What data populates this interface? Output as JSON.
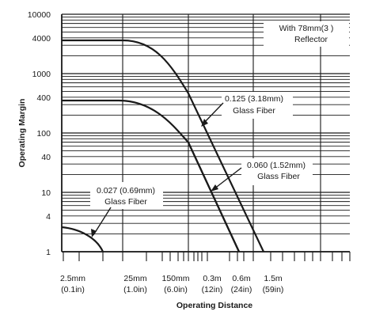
{
  "chart_data": {
    "type": "line",
    "xlabel": "Operating Distance",
    "ylabel": "Operating Margin",
    "y_scale": "log",
    "ylim": [
      1,
      10000
    ],
    "y_ticks": [
      "10000",
      "4000",
      "1000",
      "400",
      "100",
      "40",
      "10",
      "4",
      "1"
    ],
    "x_scale": "log",
    "x_ticks": [
      {
        "line1": "2.5mm",
        "line2": "(0.1in)"
      },
      {
        "line1": "25mm",
        "line2": "(1.0in)"
      },
      {
        "line1": "150mm",
        "line2": "(6.0in)"
      },
      {
        "line1": "0.3m",
        "line2": "(12in)"
      },
      {
        "line1": "0.6m",
        "line2": "(24in)"
      },
      {
        "line1": "1.5m",
        "line2": "(59in)"
      }
    ],
    "grid": true,
    "series": [
      {
        "name": "With 78mm (3 ) Reflector",
        "x_mm": [
          2.5,
          20,
          60,
          120,
          190,
          300,
          420,
          600,
          1050
        ],
        "y": [
          4000,
          4000,
          3800,
          2200,
          900,
          150,
          30,
          6,
          1
        ]
      },
      {
        "name": "0.125 (3.18mm) Glass Fiber",
        "x_mm": [
          2.5,
          20,
          60,
          100,
          150,
          230,
          330,
          480
        ],
        "y": [
          400,
          400,
          360,
          230,
          100,
          18,
          4,
          1
        ]
      },
      {
        "name": "0.060 (1.52mm) Glass Fiber",
        "x_mm": [
          2.5,
          20,
          60,
          100,
          150,
          230,
          330,
          480
        ],
        "y": [
          400,
          400,
          360,
          230,
          100,
          18,
          4,
          1
        ]
      },
      {
        "name": "0.027 (0.69mm) Glass Fiber",
        "x_mm": [
          2.5,
          5,
          8,
          12
        ],
        "y": [
          3.5,
          3,
          2,
          1
        ]
      }
    ],
    "annotations": [
      {
        "id": "reflector",
        "lines": [
          "With 78mm(3 )",
          "Reflector"
        ]
      },
      {
        "id": "f125",
        "lines": [
          "0.125  (3.18mm)",
          "Glass Fiber"
        ]
      },
      {
        "id": "f060",
        "lines": [
          "0.060  (1.52mm)",
          "Glass Fiber"
        ]
      },
      {
        "id": "f027",
        "lines": [
          "0.027  (0.69mm)",
          "Glass Fiber"
        ]
      }
    ]
  }
}
